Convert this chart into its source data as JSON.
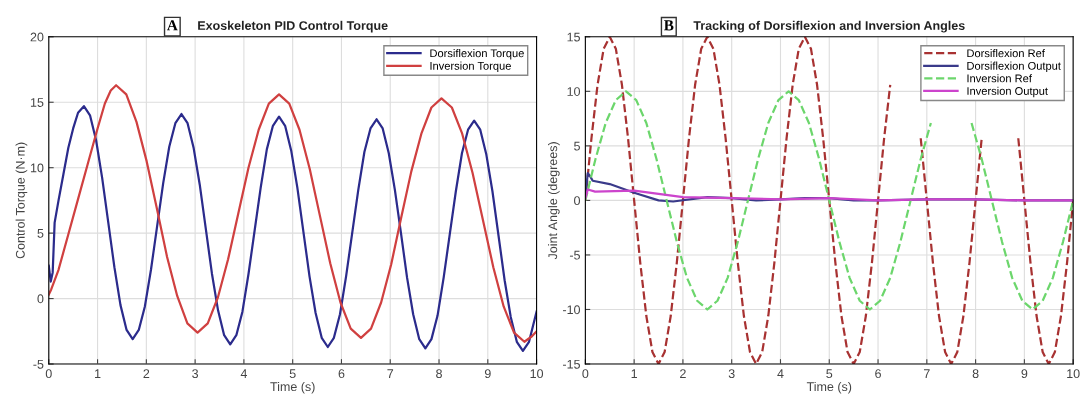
{
  "chart_data": [
    {
      "type": "line",
      "title": "Exoskeleton PID Control Torque",
      "xlabel": "Time (s)",
      "ylabel": "Control Torque (N·m)",
      "annotations": [
        "A"
      ],
      "xlim": [
        0,
        10
      ],
      "xticks": [
        0,
        1,
        2,
        3,
        4,
        5,
        6,
        7,
        8,
        9,
        10
      ],
      "ylim": [
        -5,
        20
      ],
      "yticks": [
        -5,
        0,
        5,
        10,
        15,
        20
      ],
      "grid": true,
      "legend": "top right",
      "series": [
        {
          "name": "Dorsiflexion Torque",
          "color": "#2b2b8c",
          "line_style": "solid",
          "x": [
            0,
            0.04,
            0.08,
            0.12,
            0.2,
            0.3,
            0.4,
            0.5,
            0.6,
            0.72,
            0.845,
            0.97,
            1.095,
            1.22,
            1.345,
            1.47,
            1.595,
            1.72,
            1.845,
            1.97,
            2.095,
            2.22,
            2.345,
            2.47,
            2.595,
            2.72,
            2.845,
            2.97,
            3.095,
            3.22,
            3.345,
            3.47,
            3.595,
            3.72,
            3.845,
            3.97,
            4.095,
            4.22,
            4.345,
            4.47,
            4.595,
            4.72,
            4.845,
            4.97,
            5.095,
            5.22,
            5.345,
            5.47,
            5.595,
            5.72,
            5.845,
            5.97,
            6.095,
            6.22,
            6.345,
            6.47,
            6.595,
            6.72,
            6.845,
            6.97,
            7.095,
            7.22,
            7.345,
            7.47,
            7.595,
            7.72,
            7.845,
            7.97,
            8.095,
            8.22,
            8.345,
            8.47,
            8.595,
            8.72,
            8.845,
            8.97,
            9.095,
            9.22,
            9.345,
            9.47,
            9.595,
            9.72,
            9.845,
            10
          ],
          "values": [
            2.5,
            1.3,
            2.0,
            5.8,
            7.5,
            9.5,
            11.5,
            13.0,
            14.2,
            14.7,
            14.0,
            12.1,
            9.2,
            5.8,
            2.4,
            -0.5,
            -2.4,
            -3.1,
            -2.4,
            -0.6,
            2.2,
            5.5,
            8.8,
            11.6,
            13.4,
            14.1,
            13.4,
            11.5,
            8.7,
            5.3,
            1.9,
            -0.9,
            -2.8,
            -3.5,
            -2.8,
            -1.0,
            1.9,
            5.2,
            8.5,
            11.4,
            13.2,
            13.9,
            13.2,
            11.3,
            8.5,
            5.1,
            1.7,
            -1.1,
            -3.0,
            -3.7,
            -3.0,
            -1.2,
            1.7,
            5.0,
            8.3,
            11.2,
            13.0,
            13.7,
            13.0,
            11.1,
            8.3,
            5.0,
            1.6,
            -1.2,
            -3.1,
            -3.8,
            -3.1,
            -1.3,
            1.6,
            4.9,
            8.2,
            11.1,
            12.9,
            13.6,
            12.9,
            11.0,
            8.2,
            4.8,
            1.4,
            -1.4,
            -3.3,
            -4.0,
            -3.3,
            -1.0
          ]
        },
        {
          "name": "Inversion Torque",
          "color": "#d04040",
          "line_style": "solid",
          "x": [
            0,
            0.05,
            0.2,
            0.4,
            0.6,
            0.8,
            1.0,
            1.15,
            1.27,
            1.38,
            1.589,
            1.798,
            2.006,
            2.215,
            2.424,
            2.633,
            2.841,
            3.05,
            3.259,
            3.468,
            3.676,
            3.885,
            4.094,
            4.303,
            4.511,
            4.72,
            4.93,
            5.14,
            5.35,
            5.56,
            5.77,
            5.98,
            6.19,
            6.4,
            6.606,
            6.813,
            7.019,
            7.225,
            7.431,
            7.638,
            7.844,
            8.05,
            8.263,
            8.475,
            8.688,
            8.9,
            9.113,
            9.325,
            9.538,
            9.75,
            9.9,
            10
          ],
          "values": [
            0.3,
            0.7,
            2.2,
            4.9,
            7.6,
            10.3,
            13.0,
            14.9,
            15.9,
            16.3,
            15.6,
            13.5,
            10.5,
            6.9,
            3.2,
            0.2,
            -1.9,
            -2.6,
            -1.9,
            0.1,
            3.0,
            6.5,
            10.0,
            12.9,
            14.9,
            15.6,
            14.9,
            12.9,
            9.9,
            6.3,
            2.7,
            -0.3,
            -2.3,
            -3.0,
            -2.3,
            -0.3,
            2.6,
            6.2,
            9.7,
            12.6,
            14.6,
            15.3,
            14.6,
            12.6,
            9.6,
            6.0,
            2.4,
            -0.6,
            -2.6,
            -3.3,
            -2.9,
            -2.5
          ]
        }
      ]
    },
    {
      "type": "line",
      "title": "Tracking of Dorsiflexion and Inversion Angles",
      "xlabel": "Time (s)",
      "ylabel": "Joint Angle (degrees)",
      "annotations": [
        "B"
      ],
      "xlim": [
        0,
        10
      ],
      "xticks": [
        0,
        1,
        2,
        3,
        4,
        5,
        6,
        7,
        8,
        9,
        10
      ],
      "ylim": [
        -15,
        15
      ],
      "yticks": [
        -15,
        -10,
        -5,
        0,
        5,
        10,
        15
      ],
      "grid": true,
      "legend": "top right",
      "series": [
        {
          "name": "Dorsiflexion Ref",
          "color": "#a83232",
          "line_style": "dashed",
          "x": [
            0,
            0.125,
            0.25,
            0.375,
            0.5,
            0.625,
            0.75,
            0.875,
            1,
            1.125,
            1.25,
            1.375,
            1.5,
            1.625,
            1.75,
            1.875,
            2,
            2.125,
            2.25,
            2.375,
            2.5,
            2.625,
            2.75,
            2.875,
            3,
            3.125,
            3.25,
            3.375,
            3.5,
            3.625,
            3.75,
            3.875,
            4,
            4.125,
            4.25,
            4.375,
            4.5,
            4.625,
            4.75,
            4.875,
            5,
            5.125,
            5.25,
            5.375,
            5.5,
            5.625,
            5.75,
            5.875,
            6,
            6.125,
            6.25,
            6.375,
            6.5,
            6.625,
            6.75,
            6.875,
            7,
            7.125,
            7.25,
            7.375,
            7.5,
            7.625,
            7.75,
            7.875,
            8,
            8.125,
            8.25,
            8.375,
            8.5,
            8.625,
            8.75,
            8.875,
            9,
            9.125,
            9.25,
            9.375,
            9.5,
            9.625,
            9.75,
            9.875,
            10
          ],
          "values": [
            0,
            5.7,
            10.6,
            13.9,
            15,
            13.9,
            10.6,
            5.7,
            0,
            -5.7,
            -10.6,
            -13.9,
            -15,
            -13.9,
            -10.6,
            -5.7,
            0,
            5.7,
            10.6,
            13.9,
            15,
            13.9,
            10.6,
            5.7,
            0,
            -5.7,
            -10.6,
            -13.9,
            -15,
            -13.9,
            -10.6,
            -5.7,
            0,
            5.7,
            10.6,
            13.9,
            15,
            13.9,
            10.6,
            5.7,
            0,
            -5.7,
            -10.6,
            -13.9,
            -15,
            -13.9,
            -10.6,
            -5.7,
            0,
            5.7,
            10.6,
            null,
            null,
            null,
            null,
            5.7,
            0,
            -5.7,
            -10.6,
            -13.9,
            -15,
            -13.9,
            -10.6,
            -5.7,
            0,
            5.7,
            null,
            null,
            null,
            null,
            null,
            5.7,
            0,
            -5.7,
            -10.6,
            -13.9,
            -15,
            -13.9,
            -10.6,
            -5.7,
            0
          ]
        },
        {
          "name": "Dorsiflexion Output",
          "color": "#3a3a8a",
          "line_style": "solid",
          "x": [
            0,
            0.05,
            0.1,
            0.15,
            0.5,
            1,
            1.5,
            1.8,
            2.5,
            3,
            3.5,
            4,
            4.5,
            5,
            5.5,
            6,
            7,
            8,
            9,
            10
          ],
          "values": [
            0.5,
            2.5,
            2.2,
            1.8,
            1.5,
            0.7,
            0.0,
            -0.1,
            0.3,
            0.2,
            0.0,
            0.1,
            0.2,
            0.2,
            0.0,
            0.0,
            0.1,
            0.1,
            0.0,
            0.0
          ]
        },
        {
          "name": "Inversion Ref",
          "color": "#6cd66c",
          "line_style": "dashed",
          "x": [
            0,
            0.208,
            0.417,
            0.625,
            0.833,
            1.042,
            1.25,
            1.458,
            1.667,
            1.875,
            2.083,
            2.292,
            2.5,
            2.708,
            2.917,
            3.125,
            3.333,
            3.542,
            3.75,
            3.958,
            4.167,
            4.375,
            4.583,
            4.792,
            5,
            5.208,
            5.417,
            5.625,
            5.833,
            6.042,
            6.25,
            6.458,
            6.667,
            6.875,
            7.083,
            7.292,
            7.5,
            7.708,
            7.917,
            8.125,
            8.333,
            8.542,
            8.75,
            8.958,
            9.167,
            9.375,
            9.583,
            9.792,
            10
          ],
          "values": [
            0,
            3.8,
            7.1,
            9.2,
            10,
            9.2,
            7.1,
            3.8,
            0,
            -3.8,
            -7.1,
            -9.2,
            -10,
            -9.2,
            -7.1,
            -3.8,
            0,
            3.8,
            7.1,
            9.2,
            10,
            9.2,
            7.1,
            3.8,
            0,
            -3.8,
            -7.1,
            -9.2,
            -10,
            -9.2,
            -7.1,
            -3.8,
            0,
            3.8,
            7.1,
            null,
            null,
            null,
            7.1,
            3.8,
            0,
            -3.8,
            -7.1,
            -9.2,
            -10,
            -9.2,
            -7.1,
            -3.8,
            0
          ]
        },
        {
          "name": "Inversion Output",
          "color": "#cc44cc",
          "line_style": "solid",
          "x": [
            0,
            0.05,
            0.2,
            1,
            1.5,
            2,
            3,
            4,
            5,
            6,
            7,
            8,
            9,
            10
          ],
          "values": [
            0.2,
            1.0,
            0.8,
            0.9,
            0.6,
            0.3,
            0.2,
            0.1,
            0.2,
            0.0,
            0.1,
            0.1,
            0.0,
            0.0
          ]
        }
      ]
    }
  ]
}
